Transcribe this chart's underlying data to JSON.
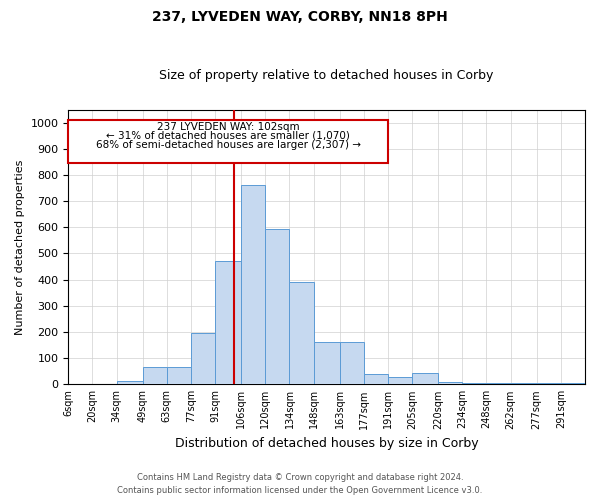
{
  "title": "237, LYVEDEN WAY, CORBY, NN18 8PH",
  "subtitle": "Size of property relative to detached houses in Corby",
  "xlabel": "Distribution of detached houses by size in Corby",
  "ylabel": "Number of detached properties",
  "property_label": "237 LYVEDEN WAY: 102sqm",
  "annotation_line1": "← 31% of detached houses are smaller (1,070)",
  "annotation_line2": "68% of semi-detached houses are larger (2,307) →",
  "footnote1": "Contains HM Land Registry data © Crown copyright and database right 2024.",
  "footnote2": "Contains public sector information licensed under the Open Government Licence v3.0.",
  "bar_color": "#c6d9f0",
  "bar_edge_color": "#5b9bd5",
  "vline_color": "#cc0000",
  "annotation_box_color": "#cc0000",
  "categories": [
    "6sqm",
    "20sqm",
    "34sqm",
    "49sqm",
    "63sqm",
    "77sqm",
    "91sqm",
    "106sqm",
    "120sqm",
    "134sqm",
    "148sqm",
    "163sqm",
    "177sqm",
    "191sqm",
    "205sqm",
    "220sqm",
    "234sqm",
    "248sqm",
    "262sqm",
    "277sqm",
    "291sqm"
  ],
  "bin_edges": [
    6,
    20,
    34,
    49,
    63,
    77,
    91,
    106,
    120,
    134,
    148,
    163,
    177,
    191,
    205,
    220,
    234,
    248,
    262,
    277,
    291,
    305
  ],
  "values": [
    0,
    0,
    12,
    65,
    65,
    195,
    470,
    760,
    595,
    390,
    160,
    160,
    40,
    27,
    44,
    10,
    5,
    5,
    5,
    5,
    5
  ],
  "ylim": [
    0,
    1050
  ],
  "yticks": [
    0,
    100,
    200,
    300,
    400,
    500,
    600,
    700,
    800,
    900,
    1000
  ],
  "vline_x": 102,
  "grid_color": "#d0d0d0",
  "background_color": "#ffffff"
}
